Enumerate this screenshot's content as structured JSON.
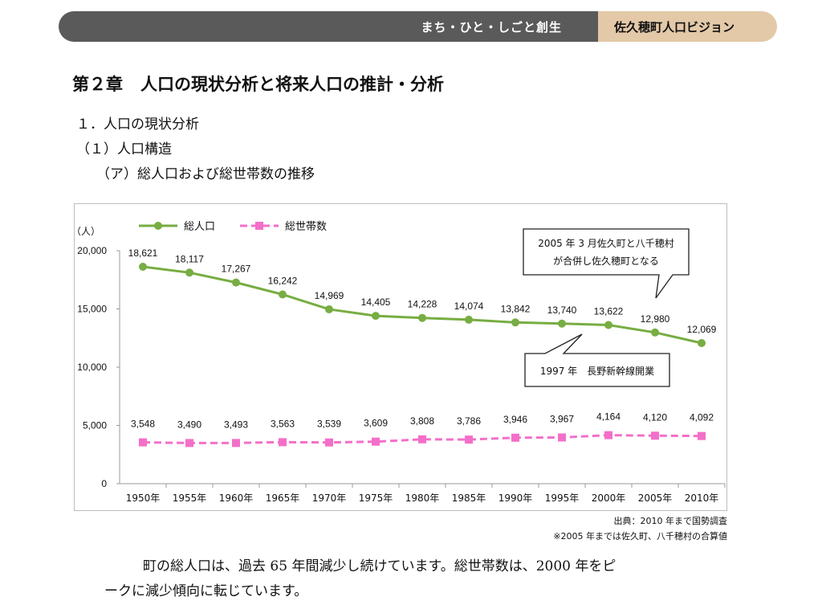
{
  "header": {
    "left_label": "まち・ひと・しごと創生",
    "right_label": "佐久穂町人口ビジョン"
  },
  "headings": {
    "chapter_number": "第２章",
    "chapter_title": "人口の現状分析と将来人口の推計・分析",
    "section": "１．人口の現状分析",
    "subsection": "（１）人口構造",
    "subsubsection": "（ア）総人口および総世帯数の推移"
  },
  "chart_data": {
    "type": "line",
    "title": "",
    "ylabel": "（人）",
    "xlabel": "",
    "ylim": [
      0,
      20000
    ],
    "yticks": [
      0,
      5000,
      10000,
      15000,
      20000
    ],
    "ytick_labels": [
      "0",
      "5,000",
      "10,000",
      "15,000",
      "20,000"
    ],
    "categories": [
      "1950年",
      "1955年",
      "1960年",
      "1965年",
      "1970年",
      "1975年",
      "1980年",
      "1985年",
      "1990年",
      "1995年",
      "2000年",
      "2005年",
      "2010年"
    ],
    "series": [
      {
        "name": "総人口",
        "color": "#77ad42",
        "style": "solid",
        "marker": "circle",
        "values": [
          18621,
          18117,
          17267,
          16242,
          14969,
          14405,
          14228,
          14074,
          13842,
          13740,
          13622,
          12980,
          12069
        ],
        "labels": [
          "18,621",
          "18,117",
          "17,267",
          "16,242",
          "14,969",
          "14,405",
          "14,228",
          "14,074",
          "13,842",
          "13,740",
          "13,622",
          "12,980",
          "12,069"
        ]
      },
      {
        "name": "総世帯数",
        "color": "#f36fc9",
        "style": "dashed",
        "marker": "square",
        "values": [
          3548,
          3490,
          3493,
          3563,
          3539,
          3609,
          3808,
          3786,
          3946,
          3967,
          4164,
          4120,
          4092
        ],
        "labels": [
          "3,548",
          "3,490",
          "3,493",
          "3,563",
          "3,539",
          "3,609",
          "3,808",
          "3,786",
          "3,946",
          "3,967",
          "4,164",
          "4,120",
          "4,092"
        ]
      }
    ],
    "legend_position": "top-left",
    "grid": false,
    "annotations": [
      {
        "lines": [
          "2005 年 3 月佐久町と八千穂村",
          "が合併し佐久穂町となる"
        ],
        "points_to": "2005年"
      },
      {
        "lines": [
          "1997 年　長野新幹線開業"
        ],
        "points_to": "1995年"
      }
    ]
  },
  "notes": {
    "source": "出典：2010 年まで国勢調査",
    "remark": "※2005 年までは佐久町、八千穂村の合算値"
  },
  "body": {
    "line1": "町の総人口は、過去 65 年間減少し続けています。総世帯数は、2000 年をピ",
    "line2": "ークに減少傾向に転じています。"
  }
}
